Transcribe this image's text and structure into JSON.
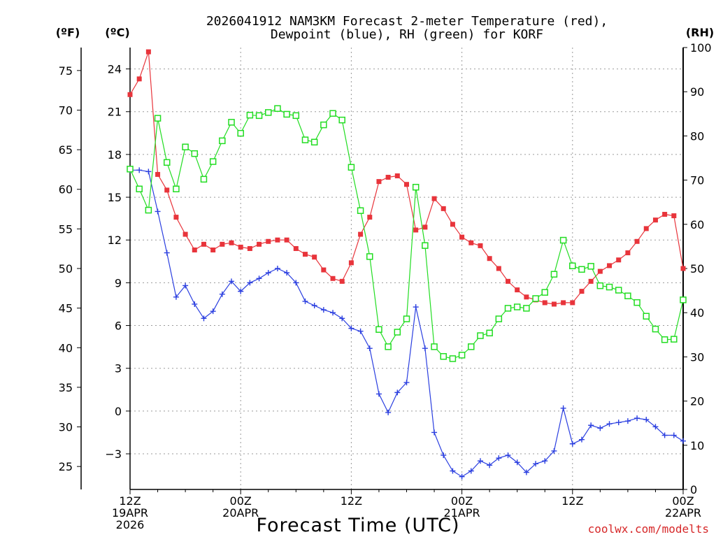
{
  "chart_data": {
    "type": "line",
    "title_lines": [
      "2026041912 NAM3KM Forecast 2-meter Temperature (red),",
      "Dewpoint (blue), RH (green) for KORF"
    ],
    "xlabel": "Forecast Time (UTC)",
    "credit": "coolwx.com/modelts",
    "units": {
      "f": "(ºF)",
      "c": "(ºC)",
      "rh": "(RH)"
    },
    "x_range_hours": [
      0,
      60
    ],
    "celsius_range": [
      -5.5,
      25.5
    ],
    "rh_range": [
      0,
      100
    ],
    "fahrenheit_ticks": [
      "75",
      "70",
      "65",
      "60",
      "55",
      "50",
      "45",
      "40",
      "35",
      "30",
      "25"
    ],
    "celsius_ticks": [
      "24",
      "21",
      "18",
      "15",
      "12",
      "9",
      "6",
      "3",
      "0",
      "−3"
    ],
    "rh_ticks": [
      "100",
      "90",
      "80",
      "70",
      "60",
      "50",
      "40",
      "30",
      "20",
      "10",
      "0"
    ],
    "x_ticks": [
      {
        "hour": 0,
        "lines": [
          "12Z",
          "19APR",
          "2026"
        ]
      },
      {
        "hour": 12,
        "lines": [
          "00Z",
          "20APR"
        ]
      },
      {
        "hour": 24,
        "lines": [
          "12Z"
        ]
      },
      {
        "hour": 36,
        "lines": [
          "00Z",
          "21APR"
        ]
      },
      {
        "hour": 48,
        "lines": [
          "12Z"
        ]
      },
      {
        "hour": 60,
        "lines": [
          "00Z",
          "22APR"
        ]
      }
    ],
    "series": [
      {
        "name": "Temperature",
        "unit": "C",
        "color": "#e8343b",
        "marker": "filled-square",
        "x": [
          0,
          1,
          2,
          3,
          4,
          5,
          6,
          7,
          8,
          9,
          10,
          11,
          12,
          13,
          14,
          15,
          16,
          17,
          18,
          19,
          20,
          21,
          22,
          23,
          24,
          25,
          26,
          27,
          28,
          29,
          30,
          31,
          32,
          33,
          34,
          35,
          36,
          37,
          38,
          39,
          40,
          41,
          42,
          43,
          44,
          45,
          46,
          47,
          48,
          49,
          50,
          51,
          52,
          53,
          54,
          55,
          56,
          57,
          58,
          59,
          60
        ],
        "values": [
          22.2,
          23.3,
          25.2,
          16.6,
          15.5,
          13.6,
          12.4,
          11.3,
          11.7,
          11.3,
          11.7,
          11.8,
          11.5,
          11.4,
          11.7,
          11.9,
          12.0,
          12.0,
          11.4,
          11.0,
          10.8,
          9.9,
          9.3,
          9.1,
          10.4,
          12.4,
          13.6,
          16.1,
          16.4,
          16.5,
          15.9,
          12.7,
          12.9,
          14.9,
          14.2,
          13.1,
          12.2,
          11.8,
          11.6,
          10.7,
          10.0,
          9.1,
          8.5,
          8.0,
          7.8,
          7.6,
          7.5,
          7.6,
          7.6,
          8.4,
          9.1,
          9.8,
          10.2,
          10.6,
          11.1,
          11.9,
          12.8,
          13.4,
          13.8,
          13.7,
          10.0
        ]
      },
      {
        "name": "Dewpoint",
        "unit": "C",
        "color": "#2b3fe0",
        "marker": "plus",
        "x": [
          0,
          1,
          2,
          3,
          4,
          5,
          6,
          7,
          8,
          9,
          10,
          11,
          12,
          13,
          14,
          15,
          16,
          17,
          18,
          19,
          20,
          21,
          22,
          23,
          24,
          25,
          26,
          27,
          28,
          29,
          30,
          31,
          32,
          33,
          34,
          35,
          36,
          37,
          38,
          39,
          40,
          41,
          42,
          43,
          44,
          45,
          46,
          47,
          48,
          49,
          50,
          51,
          52,
          53,
          54,
          55,
          56,
          57,
          58,
          59,
          60
        ],
        "values": [
          16.9,
          16.9,
          16.8,
          14.0,
          11.1,
          8.0,
          8.8,
          7.5,
          6.5,
          7.0,
          8.2,
          9.1,
          8.4,
          9.0,
          9.3,
          9.7,
          10.0,
          9.7,
          9.0,
          7.7,
          7.4,
          7.1,
          6.9,
          6.5,
          5.8,
          5.6,
          4.4,
          1.2,
          -0.1,
          1.3,
          2.0,
          7.3,
          4.4,
          -1.5,
          -3.1,
          -4.2,
          -4.6,
          -4.2,
          -3.5,
          -3.8,
          -3.3,
          -3.1,
          -3.6,
          -4.3,
          -3.7,
          -3.5,
          -2.8,
          0.2,
          -2.3,
          -2.0,
          -1.0,
          -1.2,
          -0.9,
          -0.8,
          -0.7,
          -0.5,
          -0.6,
          -1.1,
          -1.7,
          -1.7,
          -2.1
        ]
      },
      {
        "name": "RH",
        "unit": "%",
        "color": "#22dd22",
        "marker": "open-square",
        "x": [
          0,
          1,
          2,
          3,
          4,
          5,
          6,
          7,
          8,
          9,
          10,
          11,
          12,
          13,
          14,
          15,
          16,
          17,
          18,
          19,
          20,
          21,
          22,
          23,
          24,
          25,
          26,
          27,
          28,
          29,
          30,
          31,
          32,
          33,
          34,
          35,
          36,
          37,
          38,
          39,
          40,
          41,
          42,
          43,
          44,
          45,
          46,
          47,
          48,
          49,
          50,
          51,
          52,
          53,
          54,
          55,
          56,
          57,
          58,
          59,
          60
        ],
        "values": [
          72.5,
          68.0,
          63.2,
          84.0,
          74.0,
          68.0,
          77.5,
          76.0,
          70.2,
          74.2,
          78.9,
          83.1,
          80.6,
          84.7,
          84.6,
          85.3,
          86.2,
          84.9,
          84.6,
          79.1,
          78.6,
          82.5,
          85.1,
          83.6,
          72.9,
          63.1,
          52.7,
          36.2,
          32.3,
          35.6,
          38.6,
          68.4,
          55.2,
          32.3,
          30.1,
          29.6,
          30.4,
          32.3,
          34.8,
          35.4,
          38.6,
          41.0,
          41.3,
          41.0,
          43.2,
          44.6,
          48.7,
          56.4,
          50.6,
          49.8,
          50.5,
          46.1,
          45.8,
          45.1,
          43.8,
          42.3,
          39.2,
          36.3,
          33.9,
          34.0,
          42.9
        ]
      }
    ]
  }
}
